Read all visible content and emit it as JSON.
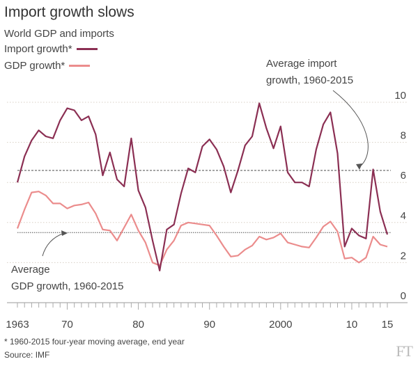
{
  "title": "Import growth slows",
  "subtitle": "World GDP and imports",
  "legend": [
    {
      "label": "Import growth*",
      "color": "#8b2f53"
    },
    {
      "label": "GDP growth*",
      "color": "#eb8c8c"
    }
  ],
  "annotations": {
    "import_avg": [
      "Average import",
      "growth, 1960-2015"
    ],
    "gdp_avg": [
      "Average",
      "GDP growth, 1960-2015"
    ]
  },
  "footnote": "* 1960-2015 four-year moving average, end year",
  "source": "Source: IMF",
  "logo": "FT",
  "chart_data": {
    "type": "line",
    "title": "Import growth slows",
    "ylim": [
      0,
      10
    ],
    "yticks": [
      0,
      2,
      4,
      6,
      8,
      10
    ],
    "xlim": [
      1963,
      2015
    ],
    "xtick_labels": [
      {
        "year": 1963,
        "label": "1963"
      },
      {
        "year": 1970,
        "label": "70"
      },
      {
        "year": 1980,
        "label": "80"
      },
      {
        "year": 1990,
        "label": "90"
      },
      {
        "year": 2000,
        "label": "2000"
      },
      {
        "year": 2010,
        "label": "10"
      },
      {
        "year": 2015,
        "label": "15"
      }
    ],
    "grid": true,
    "x": [
      1963,
      1964,
      1965,
      1966,
      1967,
      1968,
      1969,
      1970,
      1971,
      1972,
      1973,
      1974,
      1975,
      1976,
      1977,
      1978,
      1979,
      1980,
      1981,
      1982,
      1983,
      1984,
      1985,
      1986,
      1987,
      1988,
      1989,
      1990,
      1991,
      1992,
      1993,
      1994,
      1995,
      1996,
      1997,
      1998,
      1999,
      2000,
      2001,
      2002,
      2003,
      2004,
      2005,
      2006,
      2007,
      2008,
      2009,
      2010,
      2011,
      2012,
      2013,
      2014,
      2015
    ],
    "series": [
      {
        "name": "Import growth*",
        "color": "#8b2f53",
        "values": [
          6.0,
          7.3,
          8.1,
          8.6,
          8.3,
          8.2,
          9.1,
          9.7,
          9.6,
          9.1,
          9.3,
          8.4,
          6.35,
          7.5,
          6.15,
          5.8,
          8.2,
          5.6,
          4.75,
          3.1,
          1.6,
          3.65,
          3.9,
          5.45,
          6.7,
          6.5,
          7.8,
          8.15,
          7.65,
          6.8,
          5.5,
          6.6,
          7.85,
          8.3,
          9.95,
          8.7,
          7.7,
          8.8,
          6.5,
          6.0,
          6.0,
          5.8,
          7.65,
          8.9,
          9.5,
          7.45,
          2.8,
          3.7,
          3.35,
          3.2,
          6.65,
          4.55,
          3.4
        ]
      },
      {
        "name": "GDP growth*",
        "color": "#eb8c8c",
        "values": [
          3.7,
          4.65,
          5.5,
          5.55,
          5.35,
          4.95,
          4.95,
          4.7,
          4.85,
          4.9,
          5.0,
          4.45,
          3.65,
          3.6,
          3.1,
          3.75,
          4.4,
          3.6,
          3.0,
          2.0,
          1.85,
          2.65,
          3.1,
          3.85,
          4.0,
          3.95,
          3.9,
          3.85,
          3.35,
          2.8,
          2.3,
          2.35,
          2.65,
          2.85,
          3.3,
          3.15,
          3.25,
          3.45,
          3.0,
          2.9,
          2.8,
          2.75,
          3.25,
          3.8,
          4.05,
          3.55,
          2.2,
          2.25,
          2.0,
          2.25,
          3.3,
          2.9,
          2.8
        ]
      }
    ],
    "reference_lines": [
      {
        "name": "Average import growth, 1960-2015",
        "value": 6.6
      },
      {
        "name": "Average GDP growth, 1960-2015",
        "value": 3.5
      }
    ]
  }
}
